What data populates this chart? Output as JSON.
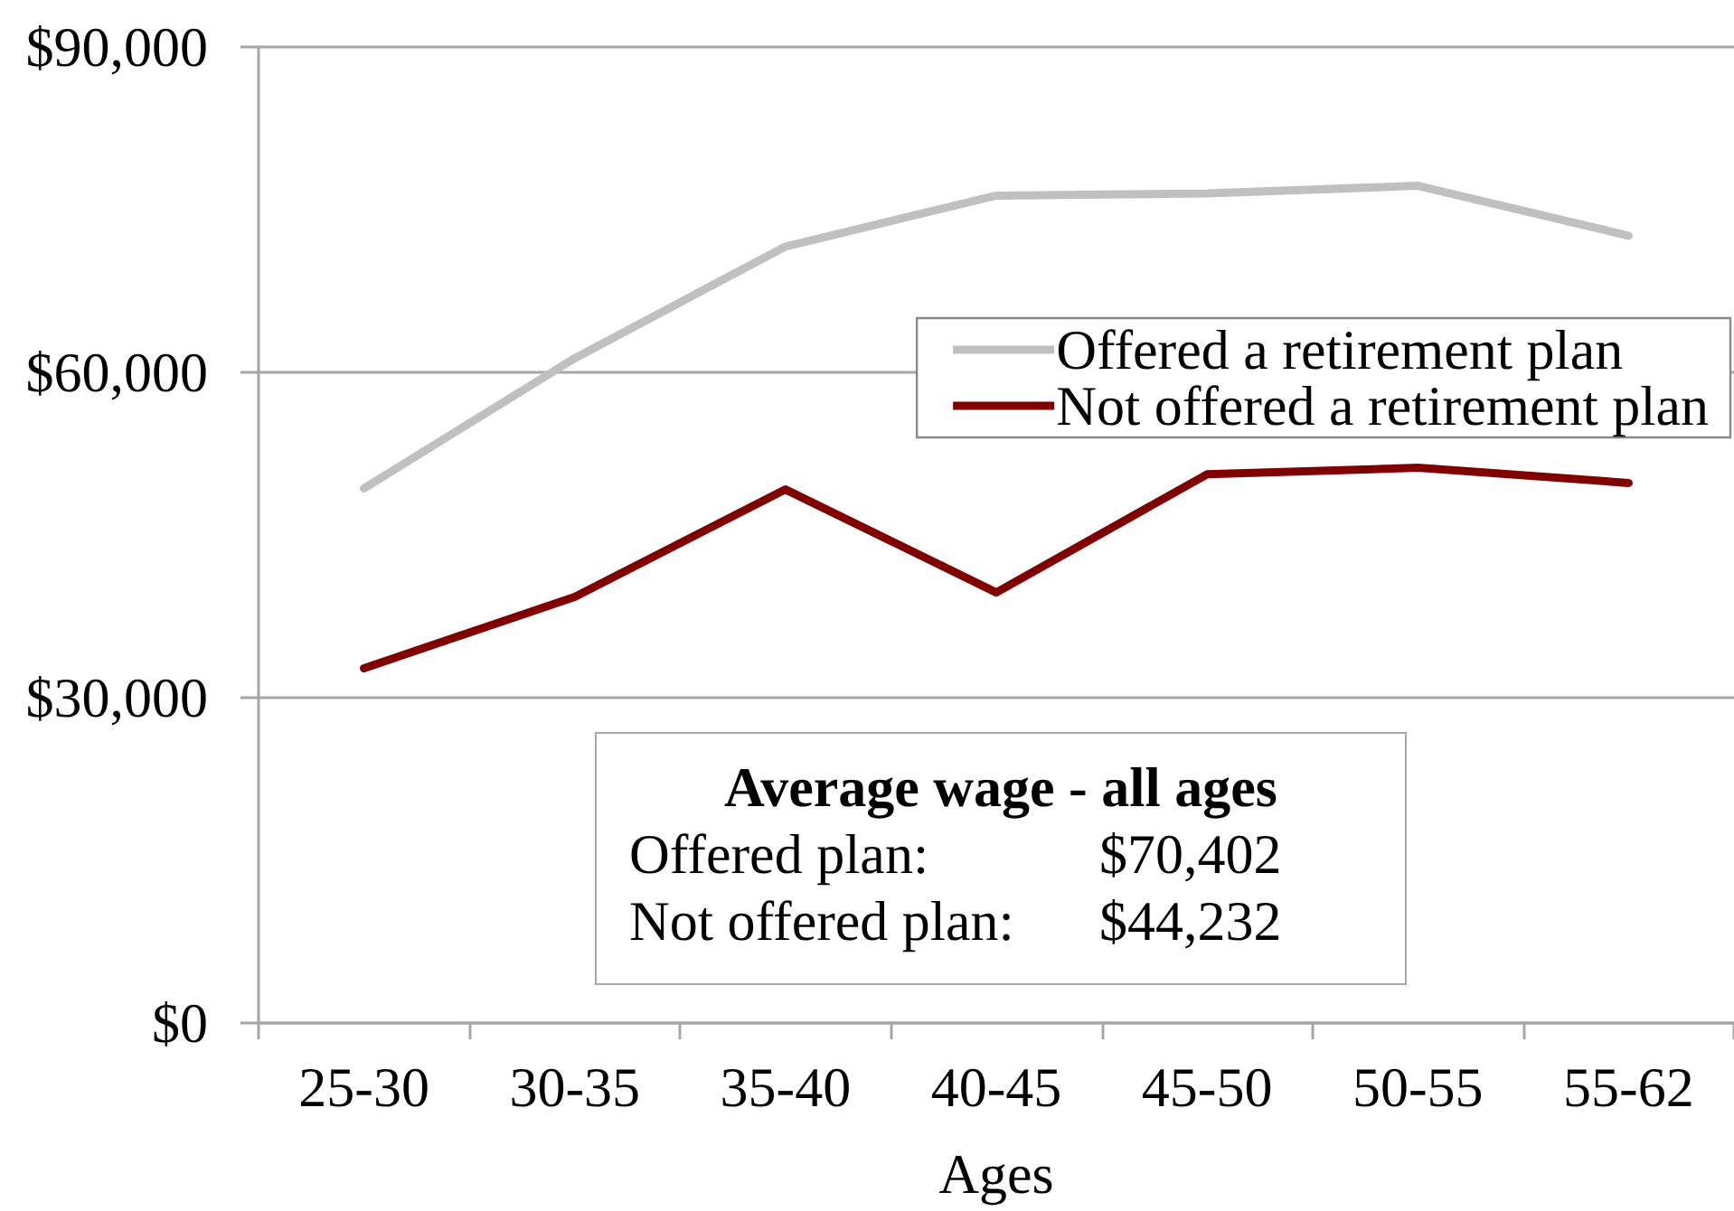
{
  "chart_data": {
    "type": "line",
    "xlabel": "Ages",
    "categories": [
      "25-30",
      "30-35",
      "35-40",
      "40-45",
      "45-50",
      "50-55",
      "55-62"
    ],
    "series": [
      {
        "name": "Offered a retirement plan",
        "color": "#c0c0c0",
        "values": [
          49300,
          61300,
          71600,
          76300,
          76500,
          77200,
          72600
        ]
      },
      {
        "name": "Not offered a retirement plan",
        "color": "#800000",
        "values": [
          32700,
          39300,
          49200,
          39700,
          50600,
          51200,
          49800
        ]
      }
    ],
    "ylim": [
      0,
      90000
    ],
    "yticks": [
      {
        "value": 0,
        "label": "$0"
      },
      {
        "value": 30000,
        "label": "$30,000"
      },
      {
        "value": 60000,
        "label": "$60,000"
      },
      {
        "value": 90000,
        "label": "$90,000"
      }
    ],
    "grid": "y",
    "legend": "right",
    "annotations": [
      "Average wage - all ages",
      "Offered plan:",
      "$70,402",
      "Not offered plan:",
      "$44,232"
    ]
  }
}
